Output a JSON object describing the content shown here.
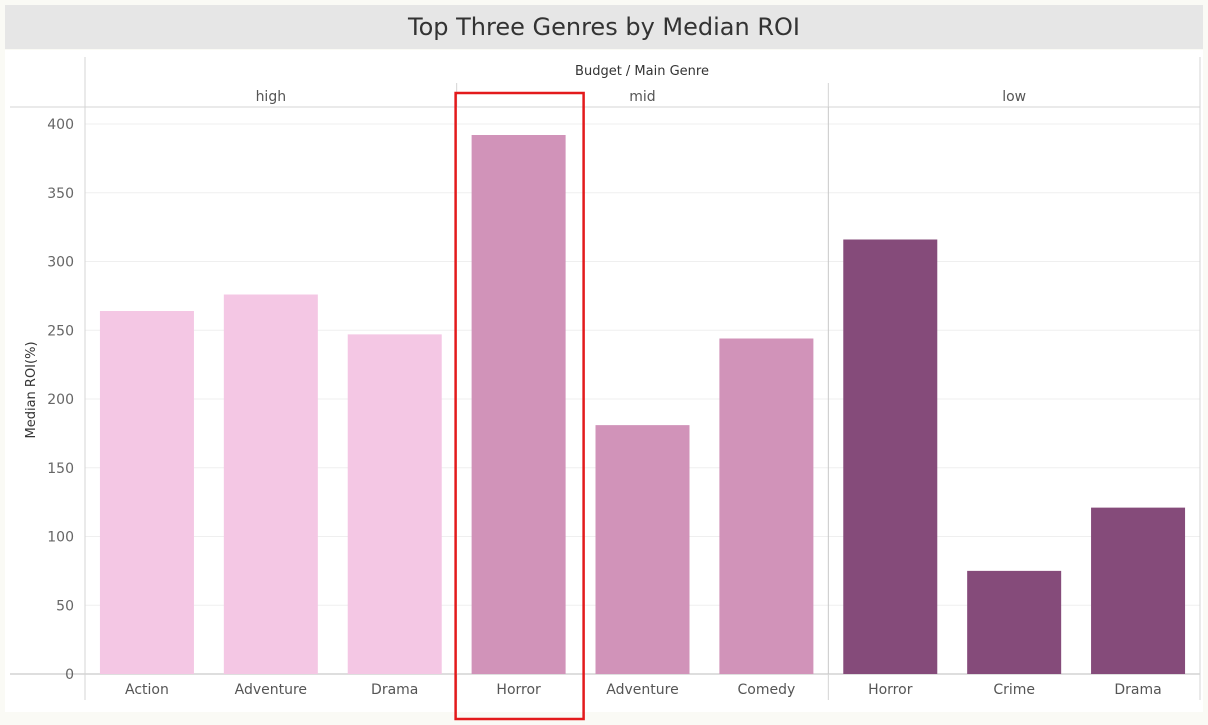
{
  "header": {
    "title": "Top Three Genres by Median ROI"
  },
  "chart_data": {
    "type": "bar",
    "title": "Top Three Genres by Median ROI",
    "column_header": "Budget / Main Genre",
    "ylabel": "Median ROI(%)",
    "ylim": [
      0,
      410
    ],
    "yticks": [
      0,
      50,
      100,
      150,
      200,
      250,
      300,
      350,
      400
    ],
    "grid": true,
    "groups": [
      {
        "name": "high",
        "color": "#f4c7e4",
        "bars": [
          {
            "category": "Action",
            "value": 264
          },
          {
            "category": "Adventure",
            "value": 276
          },
          {
            "category": "Drama",
            "value": 247
          }
        ]
      },
      {
        "name": "mid",
        "color": "#d193b9",
        "bars": [
          {
            "category": "Horror",
            "value": 392
          },
          {
            "category": "Adventure",
            "value": 181
          },
          {
            "category": "Comedy",
            "value": 244
          }
        ]
      },
      {
        "name": "low",
        "color": "#854b7a",
        "bars": [
          {
            "category": "Horror",
            "value": 316
          },
          {
            "category": "Crime",
            "value": 75
          },
          {
            "category": "Drama",
            "value": 121
          }
        ]
      }
    ],
    "highlight": {
      "group": "mid",
      "category": "Horror",
      "color": "#e31a1c"
    }
  }
}
